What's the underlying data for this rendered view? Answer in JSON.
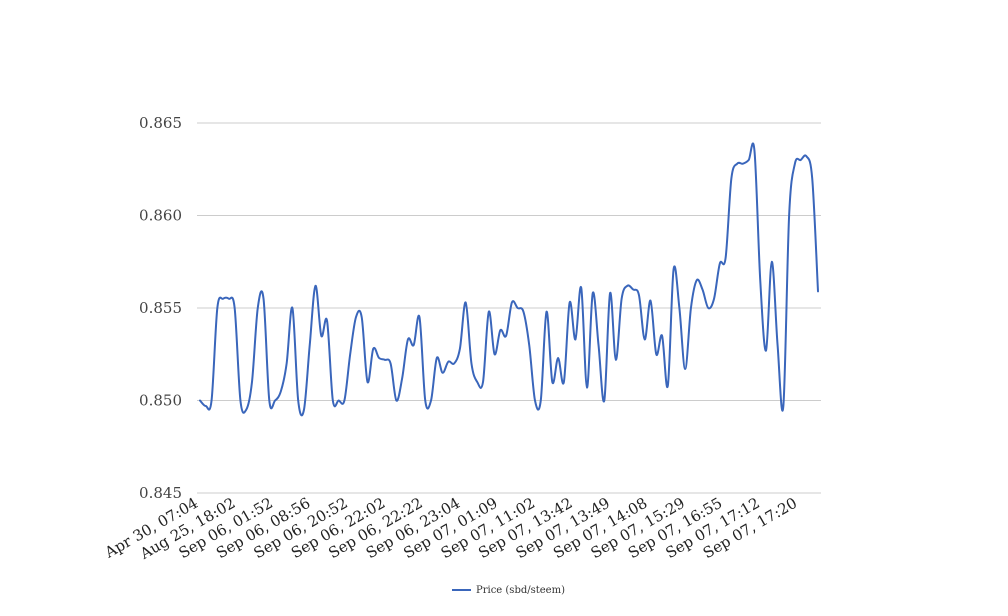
{
  "chart_data": {
    "type": "line",
    "title": "",
    "xlabel": "",
    "ylabel": "",
    "ylim": [
      0.845,
      0.865
    ],
    "yticks": [
      "0.845",
      "0.850",
      "0.855",
      "0.860",
      "0.865"
    ],
    "ytick_values": [
      0.845,
      0.85,
      0.855,
      0.86,
      0.865
    ],
    "xtick_labels": [
      "Apr 30, 07:04",
      "Aug 25, 18:02",
      "Sep 06, 01:52",
      "Sep 06, 08:56",
      "Sep 06, 20:52",
      "Sep 06, 22:02",
      "Sep 06, 22:22",
      "Sep 06, 23:04",
      "Sep 07, 01:09",
      "Sep 07, 11:02",
      "Sep 07, 13:42",
      "Sep 07, 13:49",
      "Sep 07, 14:08",
      "Sep 07, 15:29",
      "Sep 07, 16:55",
      "Sep 07, 17:12",
      "Sep 07, 17:20"
    ],
    "grid": true,
    "legend_position": "bottom",
    "series_color": "#3a66bb",
    "series": [
      {
        "name": "Price (sbd/steem)",
        "values": [
          0.85,
          0.8497,
          0.85,
          0.855,
          0.8555,
          0.8555,
          0.855,
          0.85,
          0.8495,
          0.851,
          0.855,
          0.8555,
          0.85,
          0.85,
          0.8505,
          0.852,
          0.855,
          0.85,
          0.8495,
          0.853,
          0.8562,
          0.8535,
          0.8543,
          0.85,
          0.85,
          0.85,
          0.8525,
          0.8545,
          0.8545,
          0.851,
          0.8528,
          0.8523,
          0.8522,
          0.852,
          0.85,
          0.8512,
          0.8533,
          0.853,
          0.8545,
          0.85,
          0.85,
          0.8523,
          0.8515,
          0.8521,
          0.852,
          0.8528,
          0.8553,
          0.852,
          0.851,
          0.851,
          0.8548,
          0.8525,
          0.8538,
          0.8535,
          0.8553,
          0.855,
          0.8548,
          0.853,
          0.85,
          0.85,
          0.8548,
          0.851,
          0.8523,
          0.851,
          0.8553,
          0.8533,
          0.8561,
          0.8507,
          0.8558,
          0.853,
          0.85,
          0.8558,
          0.8522,
          0.8555,
          0.8562,
          0.856,
          0.8557,
          0.8533,
          0.8554,
          0.8525,
          0.8535,
          0.8508,
          0.8571,
          0.855,
          0.8517,
          0.855,
          0.8565,
          0.856,
          0.855,
          0.8555,
          0.8574,
          0.8577,
          0.862,
          0.8628,
          0.8628,
          0.863,
          0.8635,
          0.8565,
          0.8527,
          0.8575,
          0.853,
          0.8497,
          0.86,
          0.8628,
          0.863,
          0.8632,
          0.862,
          0.8559
        ]
      }
    ]
  }
}
